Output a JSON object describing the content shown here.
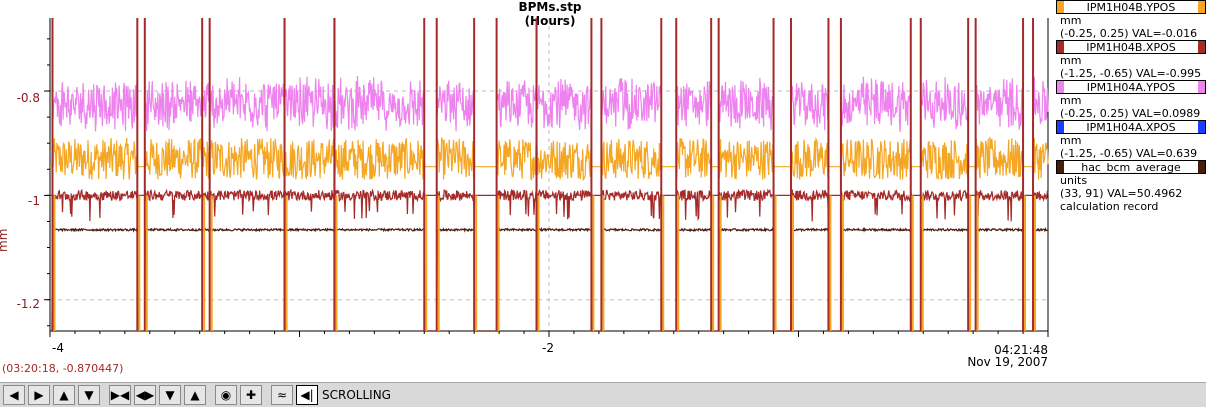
{
  "chart_data": {
    "type": "line",
    "title": "BPMs.stp",
    "xlabel": "(Hours)",
    "ylabel": "mm",
    "xlim": [
      -4,
      0
    ],
    "ylim": [
      -1.26,
      -0.66
    ],
    "x_ticks": [
      "-4",
      "-2"
    ],
    "y_ticks": [
      "-0.8",
      "-1",
      "-1.2"
    ],
    "grid": true,
    "legend_position": "right",
    "time_label": "04:21:48",
    "date_label": "Nov 19, 2007",
    "cursor_readout": "(03:20:18, -0.870447)",
    "beam_on_segments": [
      [
        -3.99,
        -3.65
      ],
      [
        -3.62,
        -3.36
      ],
      [
        -3.39,
        -3.06
      ],
      [
        -3.06,
        -2.86
      ],
      [
        -2.86,
        -2.5
      ],
      [
        -2.45,
        -2.3
      ],
      [
        -2.21,
        -2.05
      ],
      [
        -2.05,
        -1.83
      ],
      [
        -1.79,
        -1.55
      ],
      [
        -1.49,
        -1.35
      ],
      [
        -1.32,
        -1.1
      ],
      [
        -1.03,
        -0.88
      ],
      [
        -0.83,
        -0.55
      ],
      [
        -0.51,
        -0.32
      ],
      [
        -0.29,
        -0.1
      ],
      [
        -0.06,
        0.0
      ]
    ],
    "series": [
      {
        "name": "IPM1H04B.YPOS",
        "color": "#f5a623",
        "baseline": -0.945,
        "mean_on": -0.93,
        "noise": 0.04
      },
      {
        "name": "IPM1H04B.XPOS",
        "color": "#a52a2a",
        "baseline": -1.0,
        "mean_on": -1.0,
        "noise": 0.01
      },
      {
        "name": "IPM1H04A.YPOS",
        "color": "#ee82ee",
        "baseline": null,
        "mean_on": -0.81,
        "noise": 0.04
      },
      {
        "name": "IPM1H04A.XPOS",
        "color": "#1e3cff",
        "baseline": null,
        "mean_on": null,
        "noise": 0
      },
      {
        "name": "hac_bcm_average",
        "color": "#4a1a0a",
        "baseline": -1.26,
        "mean_on": -1.066,
        "noise": 0.004
      }
    ]
  },
  "legend": [
    {
      "name": "IPM1H04B.YPOS",
      "color": "#f5a623",
      "unit": "mm",
      "range": "(-0.25, 0.25) VAL=-0.016"
    },
    {
      "name": "IPM1H04B.XPOS",
      "color": "#a52a2a",
      "unit": "mm",
      "range": "(-1.25, -0.65) VAL=-0.995"
    },
    {
      "name": "IPM1H04A.YPOS",
      "color": "#ee82ee",
      "unit": "mm",
      "range": "(-0.25, 0.25) VAL=0.0989"
    },
    {
      "name": "IPM1H04A.XPOS",
      "color": "#1e3cff",
      "unit": "mm",
      "range": "(-1.25, -0.65) VAL=0.639"
    },
    {
      "name": "hac_bcm_average",
      "color": "#4a1a0a",
      "unit": "units",
      "range": "(33, 91) VAL=50.4962",
      "extra": "calculation record"
    }
  ],
  "toolbar": {
    "buttons": [
      "arrow-left-icon",
      "arrow-right-icon",
      "arrow-up-icon",
      "arrow-down-icon",
      "zoom-in-x-icon",
      "zoom-out-x-icon",
      "zoom-in-y-icon",
      "zoom-out-y-icon",
      "center-icon",
      "crosshair-icon",
      "autoscale-icon",
      "scroll-end-icon"
    ],
    "mode_label": "SCROLLING"
  }
}
